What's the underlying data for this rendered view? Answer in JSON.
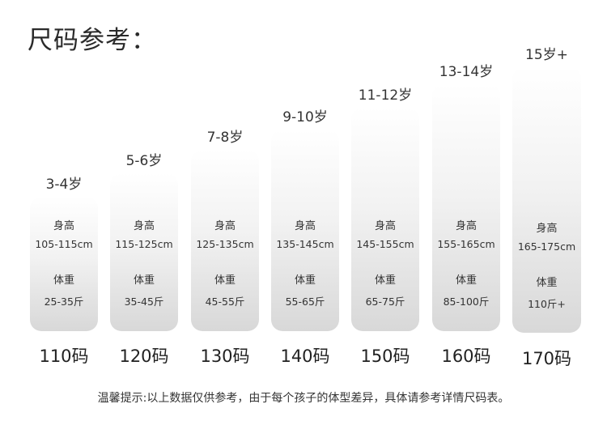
{
  "title": "尺码参考：",
  "labels": {
    "height": "身高",
    "weight": "体重"
  },
  "sizes": [
    {
      "age": "3-4岁",
      "height": "105-115cm",
      "weight": "25-35斤",
      "size": "110码"
    },
    {
      "age": "5-6岁",
      "height": "115-125cm",
      "weight": "35-45斤",
      "size": "120码"
    },
    {
      "age": "7-8岁",
      "height": "125-135cm",
      "weight": "45-55斤",
      "size": "130码"
    },
    {
      "age": "9-10岁",
      "height": "135-145cm",
      "weight": "55-65斤",
      "size": "140码"
    },
    {
      "age": "11-12岁",
      "height": "145-155cm",
      "weight": "65-75斤",
      "size": "150码"
    },
    {
      "age": "13-14岁",
      "height": "155-165cm",
      "weight": "85-100斤",
      "size": "160码"
    },
    {
      "age": "15岁+",
      "height": "165-175cm",
      "weight": "110斤+",
      "size": "170码"
    }
  ],
  "tip": "温馨提示:以上数据仅供参考，由于每个孩子的体型差异，具体请参考详情尺码表。"
}
